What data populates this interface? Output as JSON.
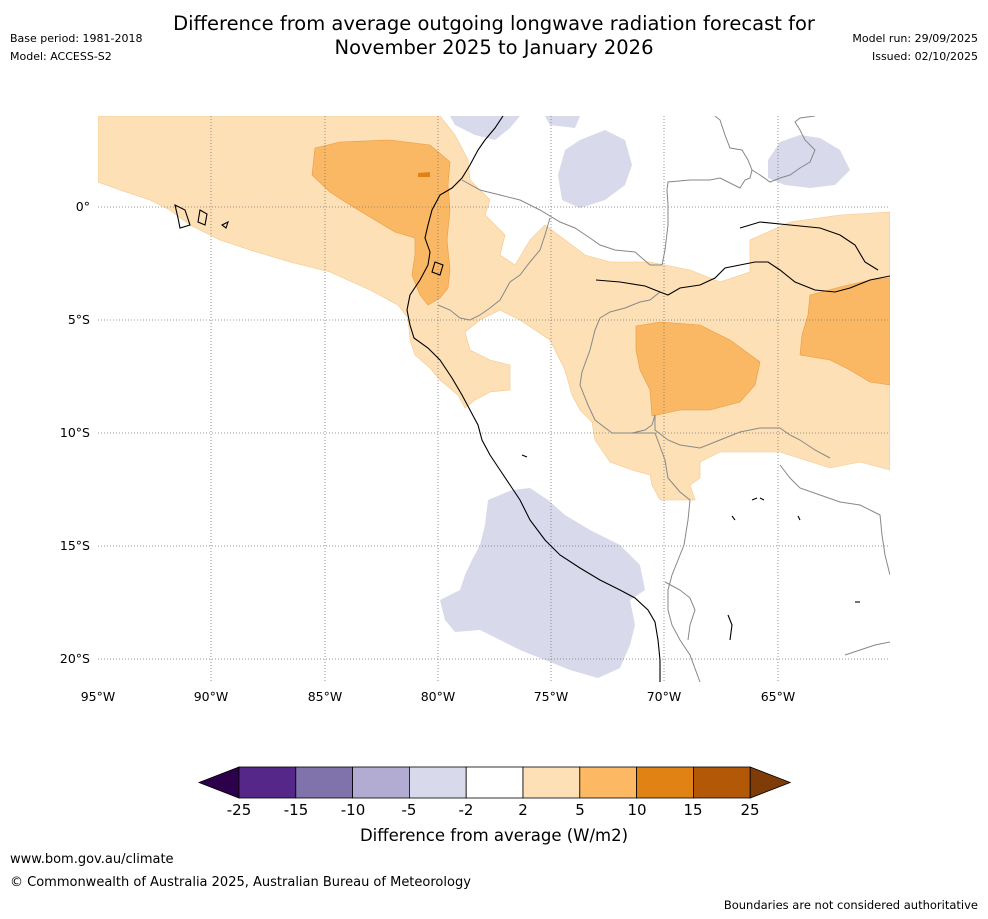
{
  "header": {
    "title_line1": "Difference from average outgoing longwave radiation forecast for",
    "title_line2": "November 2025 to January 2026",
    "base_period": "Base period: 1981-2018",
    "model": "Model: ACCESS-S2",
    "model_run": "Model run: 29/09/2025",
    "issued": "Issued: 02/10/2025"
  },
  "map": {
    "lat_labels": [
      "0°",
      "5°S",
      "10°S",
      "15°S",
      "20°S"
    ],
    "lon_labels": [
      "95°W",
      "90°W",
      "85°W",
      "80°W",
      "75°W",
      "70°W",
      "65°W"
    ],
    "colors": {
      "light_orange": "#fde0b5",
      "mid_orange": "#fbb864",
      "dark_orange": "#e08214",
      "light_purple": "#d8d9eb",
      "coastline": "#000000",
      "borders": "#888888",
      "gridline": "#888888"
    }
  },
  "colorbar": {
    "ticks": [
      "-25",
      "-15",
      "-10",
      "-5",
      "-2",
      "2",
      "5",
      "10",
      "15",
      "25"
    ],
    "colors": [
      "#2d004b",
      "#542788",
      "#8073ac",
      "#b2abd2",
      "#d8daeb",
      "#ffffff",
      "#fee0b6",
      "#fdb863",
      "#e08214",
      "#b35806",
      "#7f3b08"
    ],
    "label": "Difference from average (W/m2)"
  },
  "footer": {
    "url": "www.bom.gov.au/climate",
    "copyright": "© Commonwealth of Australia 2025, Australian Bureau of Meteorology",
    "disclaimer": "Boundaries are not considered authoritative"
  }
}
